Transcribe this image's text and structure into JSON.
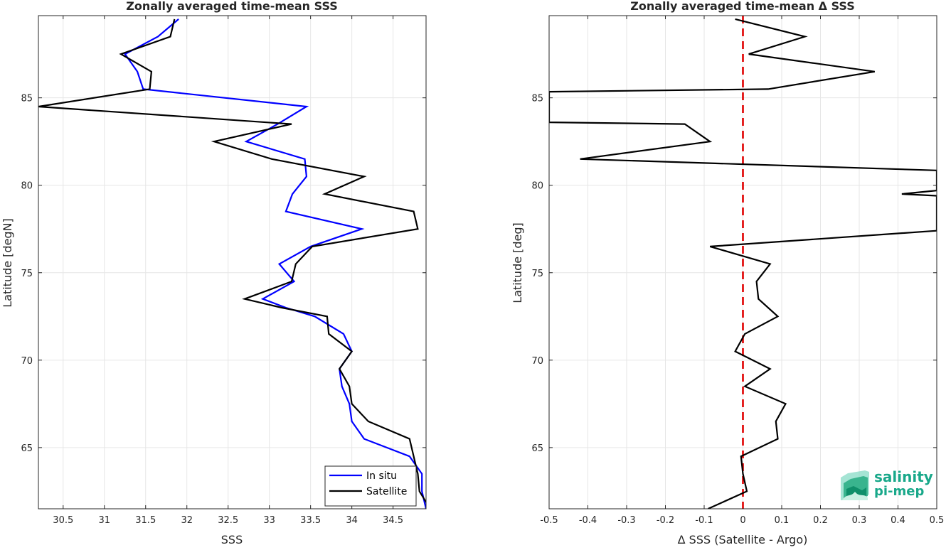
{
  "chart_data": [
    {
      "type": "line",
      "title": "Zonally averaged time-mean SSS",
      "xlabel": "SSS",
      "ylabel": "Latitude [degN]",
      "xlim": [
        30.2,
        34.9
      ],
      "ylim": [
        61.5,
        89.7
      ],
      "xticks": [
        "30.5",
        "31",
        "31.5",
        "32",
        "32.5",
        "33",
        "33.5",
        "34",
        "34.5"
      ],
      "yticks": [
        "65",
        "70",
        "75",
        "80",
        "85"
      ],
      "grid": true,
      "legend": "bottom-right",
      "series": [
        {
          "name": "In situ",
          "color": "#0000ff",
          "points": [
            [
              31.9,
              89.5
            ],
            [
              31.65,
              88.5
            ],
            [
              31.25,
              87.5
            ],
            [
              31.4,
              86.5
            ],
            [
              31.47,
              85.5
            ],
            [
              33.45,
              84.5
            ],
            [
              33.1,
              83.5
            ],
            [
              32.72,
              82.5
            ],
            [
              33.43,
              81.5
            ],
            [
              33.45,
              80.5
            ],
            [
              33.28,
              79.5
            ],
            [
              33.2,
              78.5
            ],
            [
              34.12,
              77.5
            ],
            [
              33.5,
              76.5
            ],
            [
              33.12,
              75.5
            ],
            [
              33.3,
              74.5
            ],
            [
              32.92,
              73.5
            ],
            [
              33.2,
              73
            ],
            [
              33.55,
              72.5
            ],
            [
              33.9,
              71.5
            ],
            [
              34.0,
              70.5
            ],
            [
              33.85,
              69.5
            ],
            [
              33.88,
              68.5
            ],
            [
              33.97,
              67.5
            ],
            [
              34.0,
              66.5
            ],
            [
              34.15,
              65.5
            ],
            [
              34.7,
              64.5
            ],
            [
              34.85,
              63.5
            ],
            [
              34.85,
              62.5
            ],
            [
              34.9,
              61.5
            ]
          ]
        },
        {
          "name": "Satellite",
          "color": "#000000",
          "points": [
            [
              31.85,
              89.5
            ],
            [
              31.8,
              88.5
            ],
            [
              31.2,
              87.5
            ],
            [
              31.57,
              86.5
            ],
            [
              31.55,
              85.5
            ],
            [
              30.2,
              84.5
            ],
            [
              33.27,
              83.5
            ],
            [
              32.33,
              82.5
            ],
            [
              33.03,
              81.5
            ],
            [
              34.15,
              80.5
            ],
            [
              33.67,
              79.5
            ],
            [
              34.75,
              78.5
            ],
            [
              34.8,
              77.5
            ],
            [
              33.52,
              76.5
            ],
            [
              33.32,
              75.5
            ],
            [
              33.27,
              74.5
            ],
            [
              32.7,
              73.5
            ],
            [
              33.15,
              73.0
            ],
            [
              33.7,
              72.5
            ],
            [
              33.72,
              71.5
            ],
            [
              34.0,
              70.5
            ],
            [
              33.85,
              69.5
            ],
            [
              33.97,
              68.5
            ],
            [
              34.0,
              67.5
            ],
            [
              34.2,
              66.5
            ],
            [
              34.7,
              65.5
            ],
            [
              34.75,
              64.5
            ],
            [
              34.8,
              63.5
            ],
            [
              34.82,
              62.5
            ],
            [
              34.95,
              61.5
            ]
          ]
        }
      ]
    },
    {
      "type": "line",
      "title": "Zonally averaged time-mean Δ SSS",
      "xlabel": "Δ SSS (Satellite - Argo)",
      "ylabel": "Latitude [deg]",
      "xlim": [
        -0.5,
        0.5
      ],
      "ylim": [
        61.5,
        89.7
      ],
      "xticks": [
        "-0.5",
        "-0.4",
        "-0.3",
        "-0.2",
        "-0.1",
        "0",
        "0.1",
        "0.2",
        "0.3",
        "0.4",
        "0.5"
      ],
      "yticks": [
        "65",
        "70",
        "75",
        "80",
        "85"
      ],
      "grid": true,
      "reference_line": {
        "x": 0,
        "color": "#e00000",
        "style": "dashed"
      },
      "series": [
        {
          "color": "#000000",
          "points": [
            [
              -0.02,
              89.5
            ],
            [
              0.16,
              88.5
            ],
            [
              0.015,
              87.5
            ],
            [
              0.34,
              86.5
            ],
            [
              0.065,
              85.5
            ],
            [
              -0.5,
              85.35
            ],
            [
              -0.5,
              83.6
            ],
            [
              -0.15,
              83.5
            ],
            [
              -0.085,
              82.5
            ],
            [
              -0.42,
              81.5
            ],
            [
              0.5,
              80.85
            ],
            [
              0.5,
              79.7
            ],
            [
              0.41,
              79.5
            ],
            [
              0.5,
              79.4
            ],
            [
              0.5,
              77.4
            ],
            [
              -0.085,
              76.5
            ],
            [
              0.07,
              75.5
            ],
            [
              0.035,
              74.5
            ],
            [
              0.04,
              73.5
            ],
            [
              0.09,
              72.5
            ],
            [
              0.005,
              71.5
            ],
            [
              -0.02,
              70.5
            ],
            [
              0.07,
              69.5
            ],
            [
              0.005,
              68.5
            ],
            [
              0.11,
              67.5
            ],
            [
              0.085,
              66.5
            ],
            [
              0.09,
              65.5
            ],
            [
              -0.005,
              64.5
            ],
            [
              0.0,
              63.5
            ],
            [
              0.01,
              62.5
            ],
            [
              -0.09,
              61.5
            ]
          ]
        }
      ]
    }
  ],
  "legend": {
    "items": [
      "In situ",
      "Satellite"
    ]
  },
  "logo": {
    "line1": "salinity",
    "line2": "pi-mep"
  }
}
